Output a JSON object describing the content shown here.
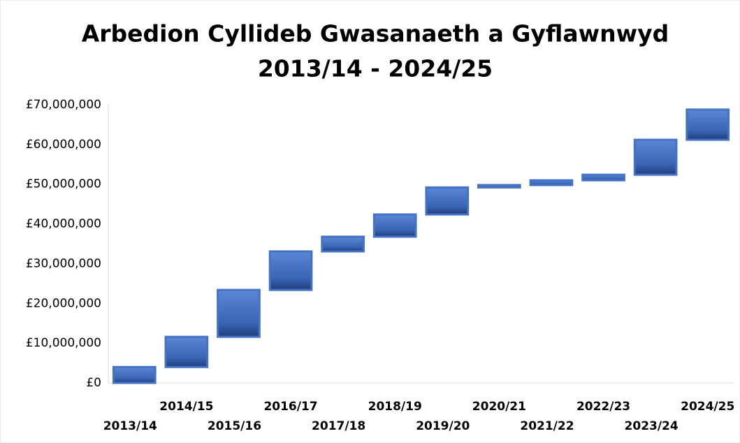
{
  "chart_data": {
    "type": "waterfall",
    "title": "Arbedion Cyllideb Gwasanaeth a Gyflawnwyd",
    "subtitle": "2013/14 - 2024/25",
    "categories": [
      "2013/14",
      "2014/15",
      "2015/16",
      "2016/17",
      "2017/18",
      "2018/19",
      "2019/20",
      "2020/21",
      "2021/22",
      "2022/23",
      "2023/24",
      "2024/25"
    ],
    "values": [
      4000000,
      7600000,
      11800000,
      9700000,
      3700000,
      5600000,
      6800000,
      600000,
      1200000,
      1400000,
      8800000,
      7600000
    ],
    "color": "#4472c4",
    "ylim": [
      0,
      70000000
    ],
    "yticks": [
      {
        "value": 0,
        "label": "£0"
      },
      {
        "value": 10000000,
        "label": "£10,000,000"
      },
      {
        "value": 20000000,
        "label": "£20,000,000"
      },
      {
        "value": 30000000,
        "label": "£30,000,000"
      },
      {
        "value": 40000000,
        "label": "£40,000,000"
      },
      {
        "value": 50000000,
        "label": "£50,000,000"
      },
      {
        "value": 60000000,
        "label": "£60,000,000"
      },
      {
        "value": 70000000,
        "label": "£70,000,000"
      }
    ],
    "grid": false
  }
}
